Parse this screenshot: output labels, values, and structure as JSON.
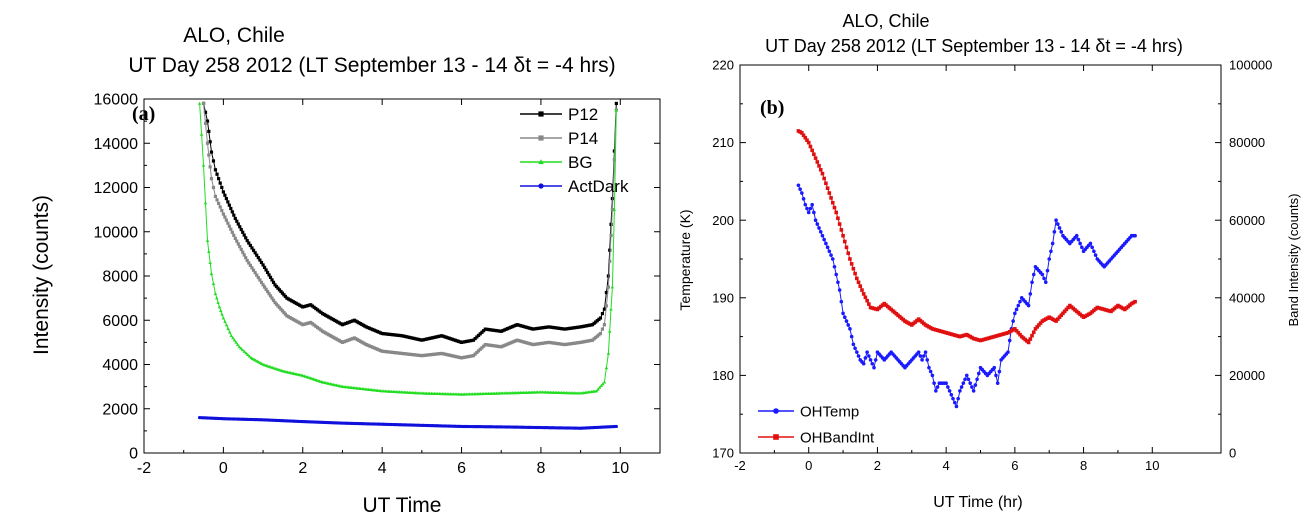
{
  "panel_a": {
    "title_line1": "ALO, Chile",
    "title_line2": "UT Day 258  2012   (LT September  13 - 14  δt = -4 hrs)",
    "panel_label": "(a)",
    "xlabel": "UT Time",
    "ylabel": "Intensity (counts)"
  },
  "panel_b": {
    "title_line1": "ALO, Chile",
    "title_line2": "UT Day 258  2012   (LT September  13 - 14  δt = -4 hrs)",
    "panel_label": "(b)",
    "xlabel": "UT Time (hr)",
    "ylabel_left": "Temperature (K)",
    "ylabel_right": "Band Intensity (counts)"
  },
  "chart_data": [
    {
      "type": "line",
      "title": "ALO, Chile / UT Day 258 2012 (LT September 13 - 14 δt = -4 hrs)",
      "xlabel": "UT Time",
      "ylabel": "Intensity (counts)",
      "xlim": [
        -2,
        11
      ],
      "ylim": [
        0,
        16000
      ],
      "xticks": [
        -2,
        0,
        2,
        4,
        6,
        8,
        10
      ],
      "yticks": [
        0,
        2000,
        4000,
        6000,
        8000,
        10000,
        12000,
        14000,
        16000
      ],
      "grid": false,
      "legend": "top-right",
      "series": [
        {
          "name": "P12",
          "color": "#000000",
          "marker": "square",
          "x": [
            -0.5,
            -0.4,
            -0.3,
            -0.2,
            0,
            0.3,
            0.6,
            1.0,
            1.3,
            1.6,
            2.0,
            2.2,
            2.5,
            3.0,
            3.3,
            3.6,
            4.0,
            4.5,
            5.0,
            5.5,
            6.0,
            6.3,
            6.6,
            7.0,
            7.4,
            7.8,
            8.2,
            8.6,
            9.0,
            9.3,
            9.5,
            9.6,
            9.7,
            9.8,
            9.9
          ],
          "y": [
            15800,
            15000,
            13600,
            12800,
            11800,
            10600,
            9600,
            8500,
            7600,
            7000,
            6600,
            6700,
            6300,
            5800,
            6000,
            5700,
            5400,
            5300,
            5100,
            5300,
            5000,
            5100,
            5600,
            5500,
            5800,
            5600,
            5700,
            5600,
            5700,
            5800,
            6100,
            6500,
            8000,
            11500,
            15800
          ]
        },
        {
          "name": "P14",
          "color": "#888888",
          "marker": "square",
          "x": [
            -0.5,
            -0.4,
            -0.3,
            -0.2,
            0,
            0.3,
            0.6,
            1.0,
            1.3,
            1.6,
            2.0,
            2.2,
            2.5,
            3.0,
            3.3,
            3.6,
            4.0,
            4.5,
            5.0,
            5.5,
            6.0,
            6.3,
            6.6,
            7.0,
            7.4,
            7.8,
            8.2,
            8.6,
            9.0,
            9.3,
            9.5,
            9.6,
            9.7,
            9.8,
            9.9
          ],
          "y": [
            15800,
            14000,
            12400,
            11600,
            10800,
            9700,
            8700,
            7600,
            6800,
            6200,
            5800,
            5900,
            5500,
            5000,
            5200,
            4900,
            4600,
            4500,
            4400,
            4500,
            4300,
            4400,
            4900,
            4800,
            5100,
            4900,
            5000,
            4900,
            5000,
            5100,
            5400,
            5800,
            7500,
            11000,
            15500
          ]
        },
        {
          "name": "BG",
          "color": "#22dd22",
          "marker": "triangle",
          "x": [
            -0.6,
            -0.5,
            -0.4,
            -0.3,
            -0.2,
            -0.1,
            0,
            0.2,
            0.4,
            0.7,
            1.0,
            1.5,
            2.0,
            2.5,
            3.0,
            3.5,
            4.0,
            5.0,
            6.0,
            7.0,
            8.0,
            9.0,
            9.4,
            9.6,
            9.7,
            9.8,
            9.85,
            9.9
          ],
          "y": [
            15800,
            13000,
            9600,
            8100,
            7200,
            6600,
            6100,
            5300,
            4800,
            4300,
            4000,
            3700,
            3500,
            3200,
            3000,
            2900,
            2800,
            2700,
            2650,
            2700,
            2750,
            2700,
            2800,
            3200,
            4500,
            7500,
            11000,
            15500
          ]
        },
        {
          "name": "ActDark",
          "color": "#1010dd",
          "marker": "circle",
          "x": [
            -0.6,
            0,
            1,
            2,
            3,
            4,
            5,
            6,
            7,
            8,
            9,
            9.9
          ],
          "y": [
            1600,
            1550,
            1500,
            1420,
            1350,
            1300,
            1250,
            1200,
            1180,
            1150,
            1120,
            1200
          ]
        }
      ]
    },
    {
      "type": "line",
      "title": "ALO, Chile / UT Day 258 2012 (LT September 13 - 14 δt = -4 hrs)",
      "xlabel": "UT Time (hr)",
      "ylabel": "Temperature (K)",
      "y2label": "Band Intensity (counts)",
      "xlim": [
        -2,
        12
      ],
      "ylim": [
        170,
        220
      ],
      "y2lim": [
        0,
        100000
      ],
      "xticks": [
        -2,
        0,
        2,
        4,
        6,
        8,
        10
      ],
      "yticks": [
        170,
        180,
        190,
        200,
        210,
        220
      ],
      "y2ticks": [
        0,
        20000,
        40000,
        60000,
        80000,
        100000
      ],
      "grid": false,
      "legend": "bottom-left",
      "series": [
        {
          "name": "OHTemp",
          "color": "#1a1aff",
          "marker": "circle",
          "axis": "left",
          "x": [
            -0.3,
            -0.2,
            -0.1,
            0,
            0.1,
            0.2,
            0.3,
            0.5,
            0.7,
            0.8,
            0.9,
            1.0,
            1.1,
            1.2,
            1.3,
            1.5,
            1.6,
            1.7,
            1.8,
            1.9,
            2.0,
            2.2,
            2.4,
            2.6,
            2.8,
            3.0,
            3.2,
            3.3,
            3.4,
            3.5,
            3.6,
            3.7,
            3.8,
            4.0,
            4.2,
            4.3,
            4.4,
            4.5,
            4.6,
            4.7,
            4.8,
            5.0,
            5.2,
            5.4,
            5.5,
            5.6,
            5.8,
            5.9,
            6.0,
            6.2,
            6.4,
            6.5,
            6.6,
            6.8,
            6.9,
            7.0,
            7.1,
            7.2,
            7.4,
            7.6,
            7.8,
            8.0,
            8.2,
            8.4,
            8.6,
            8.8,
            9.0,
            9.2,
            9.4,
            9.5
          ],
          "y": [
            204.5,
            203.5,
            202,
            201,
            202,
            200,
            199,
            197,
            195,
            193,
            191,
            188,
            187,
            186,
            184,
            182,
            181.5,
            183,
            182,
            181,
            183,
            182,
            183,
            182,
            181,
            182,
            183,
            182,
            183,
            181,
            180,
            178,
            179,
            179,
            177,
            176,
            178,
            179,
            180,
            179,
            178,
            181,
            180,
            181,
            179,
            182,
            183,
            186,
            188,
            190,
            189,
            192,
            194,
            193,
            192,
            195,
            197,
            200,
            198,
            197,
            198,
            196,
            197,
            195,
            194,
            195,
            196,
            197,
            198,
            198
          ]
        },
        {
          "name": "OHBandInt",
          "color": "#e01010",
          "marker": "square",
          "axis": "right",
          "x": [
            -0.3,
            -0.2,
            0,
            0.2,
            0.4,
            0.6,
            0.8,
            1.0,
            1.2,
            1.4,
            1.6,
            1.8,
            2.0,
            2.2,
            2.4,
            2.6,
            2.8,
            3.0,
            3.2,
            3.4,
            3.6,
            3.8,
            4.0,
            4.2,
            4.4,
            4.6,
            4.8,
            5.0,
            5.2,
            5.4,
            5.6,
            5.8,
            6.0,
            6.2,
            6.4,
            6.6,
            6.8,
            7.0,
            7.2,
            7.4,
            7.6,
            7.8,
            8.0,
            8.2,
            8.4,
            8.6,
            8.8,
            9.0,
            9.2,
            9.4,
            9.5
          ],
          "y": [
            83000,
            82500,
            80000,
            76000,
            72000,
            67000,
            62000,
            56000,
            50000,
            45000,
            41000,
            37500,
            37000,
            38500,
            37000,
            35500,
            34000,
            33000,
            34500,
            33000,
            32000,
            31500,
            31000,
            30500,
            30000,
            30500,
            29500,
            29000,
            29500,
            30000,
            30500,
            31000,
            32000,
            30000,
            28500,
            32000,
            34000,
            35000,
            34000,
            36000,
            38000,
            36500,
            35000,
            36000,
            37500,
            37000,
            36500,
            38000,
            37000,
            38500,
            39000
          ]
        }
      ]
    }
  ]
}
